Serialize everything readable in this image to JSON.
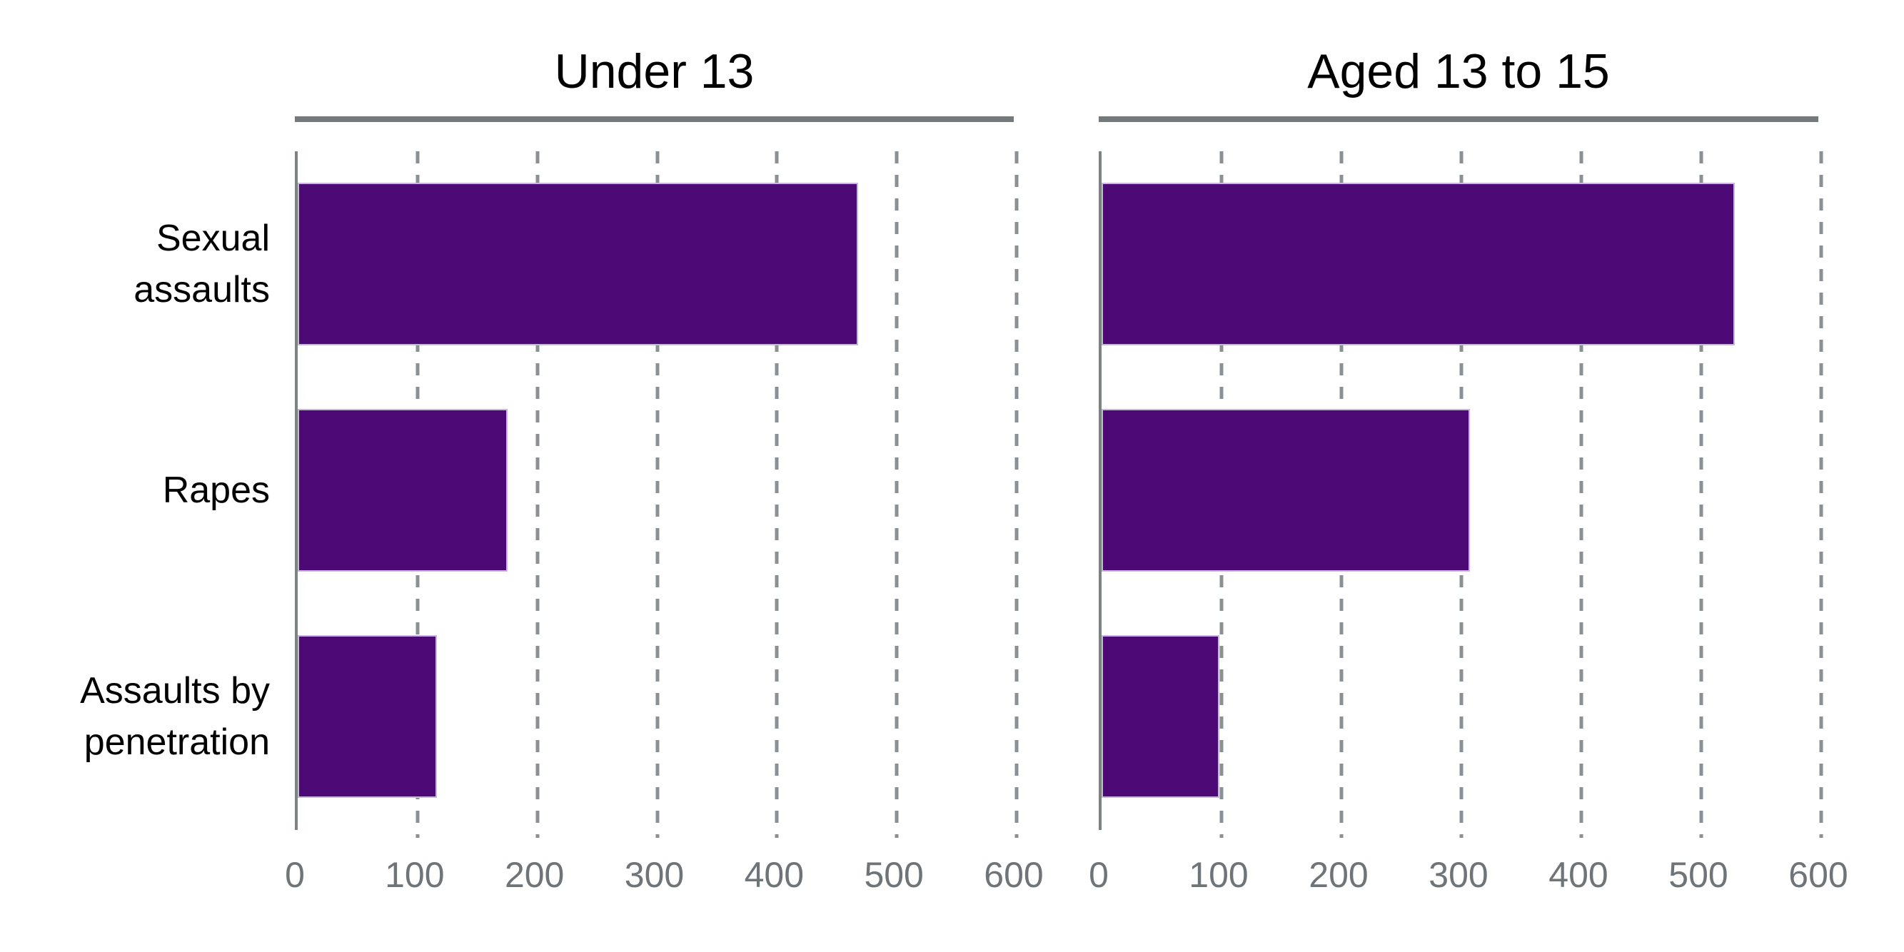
{
  "chart_data": {
    "type": "bar",
    "orientation": "horizontal",
    "title": "",
    "categories": [
      "Sexual assaults",
      "Rapes",
      "Assaults by penetration"
    ],
    "series": [
      {
        "name": "Under 13",
        "values": [
          468,
          175,
          116
        ]
      },
      {
        "name": "Aged 13 to 15",
        "values": [
          528,
          307,
          98
        ]
      }
    ],
    "xlim": [
      0,
      600
    ],
    "xticks": [
      0,
      100,
      200,
      300,
      400,
      500,
      600
    ],
    "xtick_labels": [
      "0",
      "100",
      "200",
      "300",
      "400",
      "500",
      "600"
    ],
    "grid": "vertical dashed gridlines every 100, legend none",
    "layout": "two side-by-side panels sharing category axis, panel titles underlined with grey rule"
  },
  "panels": [
    {
      "title": "Under 13"
    },
    {
      "title": "Aged 13 to 15"
    }
  ],
  "colors": {
    "bar_fill": "#4D0A77",
    "bar_edge": "#C9B6DC",
    "title_rule": "#74797B",
    "axis_line": "#7D8385",
    "gridline": "#8A9093",
    "tick_text": "#6E7477",
    "label_text": "#000000",
    "background": "#FFFFFF"
  }
}
